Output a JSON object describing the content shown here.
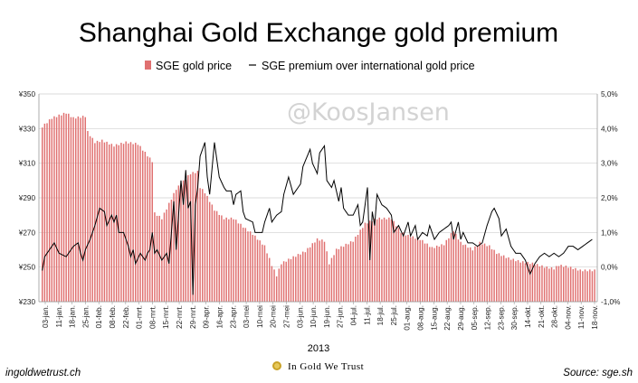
{
  "chart_data": {
    "type": "bar+line",
    "title": "Shanghai Gold Exchange gold premium",
    "series": [
      {
        "name": "SGE gold price",
        "type": "bar",
        "axis": "left"
      },
      {
        "name": "SGE premium over international gold price",
        "type": "line",
        "axis": "right"
      }
    ],
    "left_axis": {
      "ticks": [
        "¥230",
        "¥250",
        "¥270",
        "¥290",
        "¥310",
        "¥330",
        "¥350"
      ],
      "range": [
        230,
        350
      ]
    },
    "right_axis": {
      "ticks": [
        "-1,0%",
        "0,0%",
        "1,0%",
        "2,0%",
        "3,0%",
        "4,0%",
        "5,0%"
      ],
      "range": [
        -1.0,
        5.0
      ]
    },
    "x_ticks": [
      "03-jan.",
      "11-jan.",
      "18-jan.",
      "25-jan.",
      "01-feb.",
      "08-feb.",
      "22-feb.",
      "01-mrt.",
      "08-mrt.",
      "15-mrt.",
      "22-mrt.",
      "29-mrt.",
      "09-apr.",
      "16-apr.",
      "23-apr.",
      "03-mei",
      "10-mei",
      "20-mei",
      "27-mei",
      "03-jun.",
      "10-jun.",
      "19-jun.",
      "27-jun.",
      "04-jul.",
      "11-jul.",
      "18-jul.",
      "25-jul.",
      "01-aug.",
      "08-aug.",
      "15-aug.",
      "22-aug.",
      "29-aug.",
      "05-sep.",
      "12-sep.",
      "23-sep.",
      "30-sep.",
      "14-okt.",
      "21-okt.",
      "28-okt.",
      "04-nov.",
      "11-nov.",
      "18-nov."
    ],
    "xlabel": "2013",
    "grid": "horizontal",
    "legend_position": "top",
    "bar_color": "#e07070",
    "line_color": "#000000",
    "bar_anchors": [
      [
        0,
        331
      ],
      [
        4,
        336
      ],
      [
        10,
        339
      ],
      [
        13,
        336
      ],
      [
        18,
        337
      ],
      [
        19,
        328
      ],
      [
        22,
        322
      ],
      [
        25,
        323
      ],
      [
        30,
        320
      ],
      [
        35,
        322
      ],
      [
        40,
        321
      ],
      [
        46,
        311
      ],
      [
        47,
        281
      ],
      [
        50,
        278
      ],
      [
        56,
        295
      ],
      [
        62,
        304
      ],
      [
        65,
        305
      ],
      [
        66,
        296
      ],
      [
        68,
        293
      ],
      [
        72,
        283
      ],
      [
        76,
        278
      ],
      [
        80,
        278
      ],
      [
        85,
        272
      ],
      [
        88,
        269
      ],
      [
        93,
        262
      ],
      [
        96,
        251
      ],
      [
        98,
        245
      ],
      [
        100,
        252
      ],
      [
        104,
        255
      ],
      [
        110,
        259
      ],
      [
        115,
        266
      ],
      [
        118,
        265
      ],
      [
        120,
        252
      ],
      [
        123,
        260
      ],
      [
        130,
        265
      ],
      [
        135,
        275
      ],
      [
        140,
        278
      ],
      [
        146,
        278
      ],
      [
        150,
        270
      ],
      [
        153,
        268
      ],
      [
        158,
        266
      ],
      [
        163,
        261
      ],
      [
        168,
        263
      ],
      [
        172,
        271
      ],
      [
        175,
        264
      ],
      [
        180,
        260
      ],
      [
        183,
        264
      ],
      [
        187,
        262
      ],
      [
        190,
        258
      ],
      [
        195,
        255
      ],
      [
        200,
        253
      ],
      [
        205,
        252
      ],
      [
        210,
        250
      ],
      [
        214,
        249
      ],
      [
        216,
        251
      ],
      [
        220,
        250
      ],
      [
        225,
        248
      ]
    ],
    "line_anchors": [
      [
        0,
        -0.1
      ],
      [
        1,
        0.3
      ],
      [
        3,
        0.5
      ],
      [
        5,
        0.7
      ],
      [
        7,
        0.4
      ],
      [
        10,
        0.3
      ],
      [
        13,
        0.6
      ],
      [
        15,
        0.7
      ],
      [
        16,
        0.4
      ],
      [
        17,
        0.2
      ],
      [
        18,
        0.5
      ],
      [
        20,
        0.8
      ],
      [
        22,
        1.2
      ],
      [
        24,
        1.7
      ],
      [
        26,
        1.6
      ],
      [
        27,
        1.2
      ],
      [
        29,
        1.5
      ],
      [
        30,
        1.3
      ],
      [
        31,
        1.5
      ],
      [
        32,
        1.0
      ],
      [
        34,
        1.0
      ],
      [
        36,
        0.6
      ],
      [
        37,
        0.3
      ],
      [
        38,
        0.5
      ],
      [
        39,
        0.1
      ],
      [
        41,
        0.4
      ],
      [
        43,
        0.2
      ],
      [
        44,
        0.4
      ],
      [
        45,
        0.5
      ],
      [
        46,
        1.0
      ],
      [
        47,
        0.4
      ],
      [
        48,
        0.5
      ],
      [
        50,
        0.2
      ],
      [
        52,
        0.4
      ],
      [
        53,
        0.1
      ],
      [
        55,
        1.9
      ],
      [
        56,
        0.5
      ],
      [
        58,
        2.5
      ],
      [
        59,
        1.8
      ],
      [
        60,
        2.8
      ],
      [
        61,
        1.7
      ],
      [
        62,
        1.9
      ],
      [
        63,
        -0.8
      ],
      [
        64,
        1.8
      ],
      [
        65,
        2.3
      ],
      [
        66,
        3.2
      ],
      [
        68,
        3.6
      ],
      [
        69,
        2.6
      ],
      [
        70,
        2.1
      ],
      [
        72,
        3.6
      ],
      [
        74,
        2.6
      ],
      [
        76,
        2.3
      ],
      [
        77,
        2.2
      ],
      [
        79,
        2.2
      ],
      [
        80,
        1.8
      ],
      [
        81,
        2.1
      ],
      [
        83,
        2.2
      ],
      [
        84,
        1.6
      ],
      [
        85,
        1.4
      ],
      [
        88,
        1.3
      ],
      [
        89,
        1.0
      ],
      [
        92,
        1.0
      ],
      [
        93,
        1.3
      ],
      [
        95,
        1.7
      ],
      [
        96,
        1.3
      ],
      [
        98,
        1.5
      ],
      [
        100,
        1.6
      ],
      [
        101,
        2.1
      ],
      [
        103,
        2.6
      ],
      [
        105,
        2.1
      ],
      [
        107,
        2.3
      ],
      [
        108,
        2.4
      ],
      [
        109,
        2.9
      ],
      [
        112,
        3.4
      ],
      [
        113,
        3.0
      ],
      [
        115,
        2.7
      ],
      [
        116,
        3.3
      ],
      [
        118,
        3.5
      ],
      [
        119,
        2.5
      ],
      [
        121,
        2.3
      ],
      [
        122,
        2.5
      ],
      [
        124,
        1.9
      ],
      [
        125,
        2.3
      ],
      [
        126,
        1.7
      ],
      [
        128,
        1.5
      ],
      [
        130,
        1.5
      ],
      [
        132,
        1.8
      ],
      [
        133,
        1.2
      ],
      [
        134,
        1.3
      ],
      [
        136,
        2.3
      ],
      [
        137,
        0.2
      ],
      [
        138,
        1.6
      ],
      [
        139,
        1.2
      ],
      [
        140,
        2.1
      ],
      [
        142,
        1.8
      ],
      [
        144,
        1.7
      ],
      [
        146,
        1.5
      ],
      [
        147,
        1.0
      ],
      [
        149,
        1.2
      ],
      [
        151,
        0.9
      ],
      [
        153,
        1.3
      ],
      [
        154,
        0.9
      ],
      [
        156,
        1.2
      ],
      [
        157,
        0.8
      ],
      [
        159,
        1.0
      ],
      [
        161,
        0.9
      ],
      [
        162,
        1.2
      ],
      [
        164,
        0.8
      ],
      [
        166,
        1.0
      ],
      [
        168,
        1.1
      ],
      [
        170,
        1.2
      ],
      [
        171,
        1.3
      ],
      [
        172,
        0.8
      ],
      [
        174,
        1.3
      ],
      [
        175,
        0.8
      ],
      [
        176,
        1.0
      ],
      [
        178,
        0.7
      ],
      [
        180,
        0.7
      ],
      [
        182,
        0.6
      ],
      [
        184,
        0.7
      ],
      [
        186,
        1.2
      ],
      [
        188,
        1.6
      ],
      [
        189,
        1.7
      ],
      [
        191,
        1.4
      ],
      [
        192,
        0.9
      ],
      [
        194,
        1.1
      ],
      [
        196,
        0.6
      ],
      [
        198,
        0.4
      ],
      [
        200,
        0.4
      ],
      [
        202,
        0.2
      ],
      [
        204,
        -0.2
      ],
      [
        206,
        0.1
      ],
      [
        208,
        0.3
      ],
      [
        210,
        0.4
      ],
      [
        212,
        0.3
      ],
      [
        214,
        0.4
      ],
      [
        216,
        0.3
      ],
      [
        218,
        0.4
      ],
      [
        220,
        0.6
      ],
      [
        222,
        0.6
      ],
      [
        224,
        0.5
      ],
      [
        226,
        0.6
      ],
      [
        228,
        0.7
      ],
      [
        230,
        0.8
      ]
    ]
  },
  "watermark": "@KoosJansen",
  "footer": {
    "left": "ingoldwetrust.ch",
    "right": "Source: sge.sh",
    "brand": "In Gold We Trust"
  }
}
